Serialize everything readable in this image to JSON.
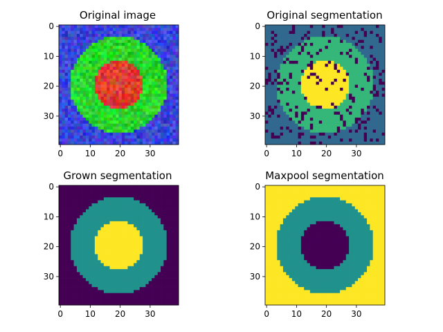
{
  "chart_data": [
    {
      "type": "heatmap",
      "title": "Original image",
      "image_size": [
        40,
        40
      ],
      "content": "noisy RGB image: blue background, green disk (outer radius ~16), red disk (inner radius ~8), centered at (20,20)",
      "colors": {
        "background": "#3a46d8",
        "ring": "#2bd62c",
        "center": "#dc3c32"
      },
      "xticks": [
        0,
        10,
        20,
        30
      ],
      "yticks": [
        0,
        10,
        20,
        30
      ],
      "xlim": [
        -0.5,
        39.5
      ],
      "ylim": [
        39.5,
        -0.5
      ]
    },
    {
      "type": "heatmap",
      "title": "Original segmentation",
      "image_size": [
        40,
        40
      ],
      "content": "label map (viridis): background=1, ring=2, center=3, with scattered noise pixels labeled 0",
      "colormap": "viridis",
      "value_colors": {
        "0": "#440154",
        "1": "#31688e",
        "2": "#35b779",
        "3": "#fde725"
      },
      "xticks": [
        0,
        10,
        20,
        30
      ],
      "yticks": [
        0,
        10,
        20,
        30
      ],
      "xlim": [
        -0.5,
        39.5
      ],
      "ylim": [
        39.5,
        -0.5
      ]
    },
    {
      "type": "heatmap",
      "title": "Grown segmentation",
      "image_size": [
        40,
        40
      ],
      "content": "clean label map: background=0, ring=1, center=2",
      "colormap": "viridis",
      "value_colors": {
        "0": "#440154",
        "1": "#21918c",
        "2": "#fde725"
      },
      "xticks": [
        0,
        10,
        20,
        30
      ],
      "yticks": [
        0,
        10,
        20,
        30
      ],
      "xlim": [
        -0.5,
        39.5
      ],
      "ylim": [
        39.5,
        -0.5
      ]
    },
    {
      "type": "heatmap",
      "title": "Maxpool segmentation",
      "image_size": [
        40,
        40
      ],
      "content": "label map: background=2, ring=1, center=0",
      "colormap": "viridis",
      "value_colors": {
        "0": "#440154",
        "1": "#21918c",
        "2": "#fde725"
      },
      "xticks": [
        0,
        10,
        20,
        30
      ],
      "yticks": [
        0,
        10,
        20,
        30
      ],
      "xlim": [
        -0.5,
        39.5
      ],
      "ylim": [
        39.5,
        -0.5
      ]
    }
  ]
}
